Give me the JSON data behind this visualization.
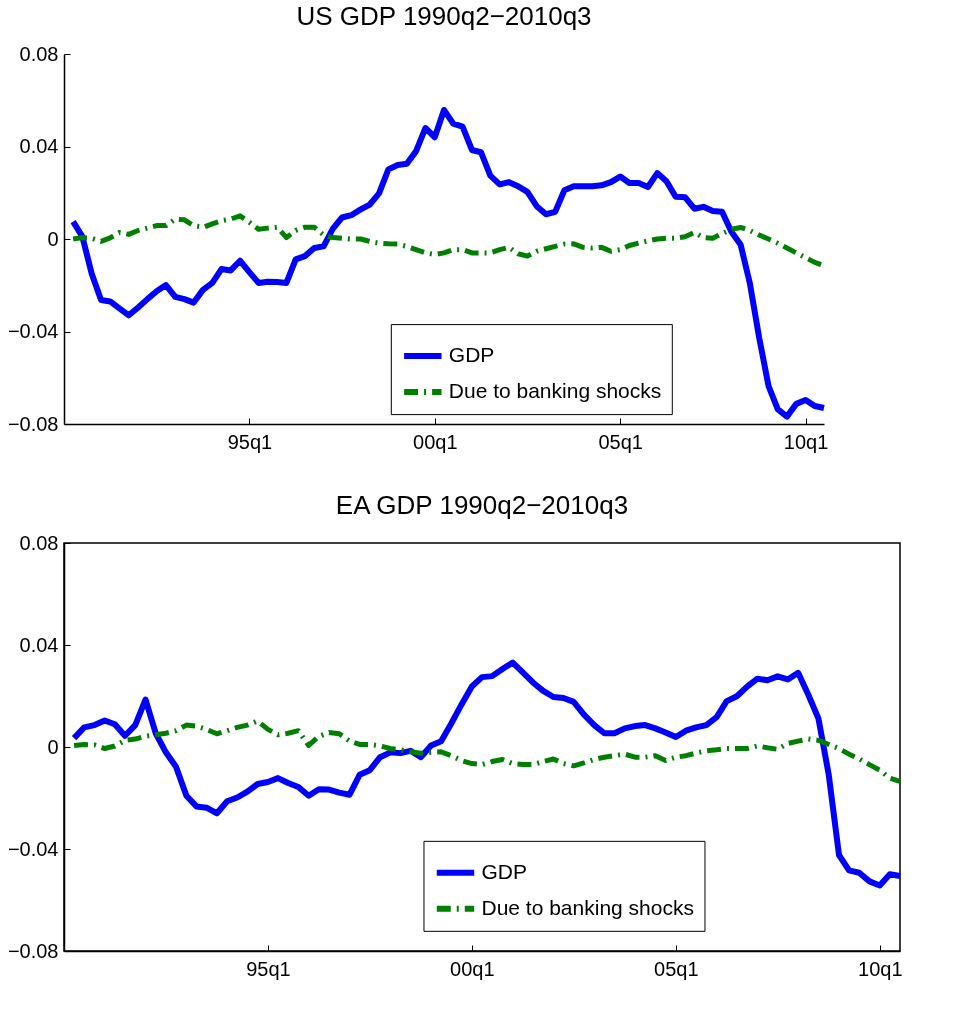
{
  "chart_data": [
    {
      "type": "line",
      "title": "US GDP 1990q2−2010q3",
      "x": [
        "1990-04",
        "1990-07",
        "1990-10",
        "1991-01",
        "1991-04",
        "1991-07",
        "1991-10",
        "1992-01",
        "1992-04",
        "1992-07",
        "1992-10",
        "1993-01",
        "1993-04",
        "1993-07",
        "1993-10",
        "1994-01",
        "1994-04",
        "1994-07",
        "1994-10",
        "1995-01",
        "1995-04",
        "1995-07",
        "1995-10",
        "1996-01",
        "1996-04",
        "1996-07",
        "1996-10",
        "1997-01",
        "1997-04",
        "1997-07",
        "1997-10",
        "1998-01",
        "1998-04",
        "1998-07",
        "1998-10",
        "1999-01",
        "1999-04",
        "1999-07",
        "1999-10",
        "2000-01",
        "2000-04",
        "2000-07",
        "2000-10",
        "2001-01",
        "2001-04",
        "2001-07",
        "2001-10",
        "2002-01",
        "2002-04",
        "2002-07",
        "2002-10",
        "2003-01",
        "2003-04",
        "2003-07",
        "2003-10",
        "2004-01",
        "2004-04",
        "2004-07",
        "2004-10",
        "2005-01",
        "2005-04",
        "2005-07",
        "2005-10",
        "2006-01",
        "2006-04",
        "2006-07",
        "2006-10",
        "2007-01",
        "2007-04",
        "2007-07",
        "2007-10",
        "2008-01",
        "2008-04",
        "2008-07",
        "2008-10",
        "2009-01",
        "2009-04",
        "2009-07",
        "2009-10",
        "2010-01",
        "2010-04",
        "2010-07"
      ],
      "series": [
        {
          "name": "GDP",
          "color": "#0000ff",
          "line_style": "solid",
          "values": [
            0.0075,
            0.001,
            -0.015,
            -0.0264,
            -0.027,
            -0.03,
            -0.033,
            -0.0296,
            -0.026,
            -0.0226,
            -0.0199,
            -0.025,
            -0.026,
            -0.0275,
            -0.022,
            -0.019,
            -0.013,
            -0.0136,
            -0.0094,
            -0.0143,
            -0.019,
            -0.0185,
            -0.0186,
            -0.019,
            -0.0088,
            -0.0074,
            -0.0039,
            -0.0032,
            0.0044,
            0.0093,
            0.0103,
            0.0128,
            0.0149,
            0.0197,
            0.0301,
            0.032,
            0.0325,
            0.038,
            0.048,
            0.044,
            0.0558,
            0.0499,
            0.0486,
            0.0385,
            0.0375,
            0.0274,
            0.0236,
            0.0246,
            0.0228,
            0.0204,
            0.0142,
            0.0107,
            0.0117,
            0.0211,
            0.0228,
            0.0228,
            0.0228,
            0.0232,
            0.0246,
            0.027,
            0.0242,
            0.0242,
            0.0225,
            0.0285,
            0.025,
            0.0183,
            0.0181,
            0.0131,
            0.0139,
            0.0121,
            0.0118,
            0.0031,
            -0.0025,
            -0.0192,
            -0.0428,
            -0.0636,
            -0.0736,
            -0.0768,
            -0.0713,
            -0.0696,
            -0.0722,
            -0.0731
          ]
        },
        {
          "name": "Due to banking shocks",
          "color": "#008000",
          "line_style": "dashed",
          "values": [
            0,
            0.0006,
            0.0003,
            -0.001,
            0.0005,
            0.0028,
            0.002,
            0.0037,
            0.0047,
            0.0058,
            0.0058,
            0.0086,
            0.0083,
            0.0058,
            0.0051,
            0.0065,
            0.0079,
            0.0086,
            0.01,
            0.0072,
            0.0042,
            0.0047,
            0.0051,
            0.0006,
            0.0037,
            0.0051,
            0.0051,
            0.0017,
            0.0006,
            0.0003,
            0,
            0,
            -0.0011,
            -0.0018,
            -0.0021,
            -0.0022,
            -0.0032,
            -0.0046,
            -0.006,
            -0.0067,
            -0.006,
            -0.0046,
            -0.0046,
            -0.006,
            -0.006,
            -0.006,
            -0.0046,
            -0.0036,
            -0.0064,
            -0.0074,
            -0.0053,
            -0.0042,
            -0.0032,
            -0.0022,
            -0.0021,
            -0.0036,
            -0.0039,
            -0.0036,
            -0.0053,
            -0.0046,
            -0.0028,
            -0.0018,
            -0.0008,
            0,
            0.0003,
            0.0003,
            0.001,
            0.0028,
            0.0006,
            0.0003,
            0.0024,
            0.0042,
            0.005,
            0.0037,
            0.0017,
            0,
            -0.0018,
            -0.0039,
            -0.006,
            -0.0081,
            -0.0101,
            -0.0115
          ]
        }
      ],
      "xlim": [
        "1990-01",
        "2010-07"
      ],
      "xticks": [
        {
          "value": "1995-01",
          "label": "95q1"
        },
        {
          "value": "2000-01",
          "label": "00q1"
        },
        {
          "value": "2005-01",
          "label": "05q1"
        },
        {
          "value": "2010-01",
          "label": "10q1"
        }
      ],
      "ylim": [
        -0.08,
        0.08
      ],
      "yticks": [
        -0.08,
        -0.04,
        0,
        0.04,
        0.08
      ],
      "legend": "bottom right",
      "grid": false
    },
    {
      "type": "line",
      "title": "EA GDP 1990q2−2010q3",
      "x": [
        "1990-04",
        "1990-07",
        "1990-10",
        "1991-01",
        "1991-04",
        "1991-07",
        "1991-10",
        "1992-01",
        "1992-04",
        "1992-07",
        "1992-10",
        "1993-01",
        "1993-04",
        "1993-07",
        "1993-10",
        "1994-01",
        "1994-04",
        "1994-07",
        "1994-10",
        "1995-01",
        "1995-04",
        "1995-07",
        "1995-10",
        "1996-01",
        "1996-04",
        "1996-07",
        "1996-10",
        "1997-01",
        "1997-04",
        "1997-07",
        "1997-10",
        "1998-01",
        "1998-04",
        "1998-07",
        "1998-10",
        "1999-01",
        "1999-04",
        "1999-07",
        "1999-10",
        "2000-01",
        "2000-04",
        "2000-07",
        "2000-10",
        "2001-01",
        "2001-04",
        "2001-07",
        "2001-10",
        "2002-01",
        "2002-04",
        "2002-07",
        "2002-10",
        "2003-01",
        "2003-04",
        "2003-07",
        "2003-10",
        "2004-01",
        "2004-04",
        "2004-07",
        "2004-10",
        "2005-01",
        "2005-04",
        "2005-07",
        "2005-10",
        "2006-01",
        "2006-04",
        "2006-07",
        "2006-10",
        "2007-01",
        "2007-04",
        "2007-07",
        "2007-10",
        "2008-01",
        "2008-04",
        "2008-07",
        "2008-10",
        "2009-01",
        "2009-04",
        "2009-07",
        "2009-10",
        "2010-01",
        "2010-04",
        "2010-07"
      ],
      "series": [
        {
          "name": "GDP",
          "color": "#0000ff",
          "line_style": "solid",
          "values": [
            0.0035,
            0.0077,
            0.0086,
            0.0104,
            0.0089,
            0.0044,
            0.0086,
            0.0186,
            0.0054,
            -0.0021,
            -0.0078,
            -0.0191,
            -0.0233,
            -0.0238,
            -0.026,
            -0.0213,
            -0.0198,
            -0.0175,
            -0.0145,
            -0.0137,
            -0.0122,
            -0.0141,
            -0.0157,
            -0.0191,
            -0.0166,
            -0.0167,
            -0.0179,
            -0.0187,
            -0.0109,
            -0.0091,
            -0.004,
            -0.0021,
            -0.0024,
            -0.0015,
            -0.004,
            0.0006,
            0.0023,
            0.0092,
            0.0167,
            0.0237,
            0.0274,
            0.0278,
            0.0306,
            0.0331,
            0.0293,
            0.0253,
            0.022,
            0.0196,
            0.0192,
            0.0177,
            0.0127,
            0.0086,
            0.0054,
            0.0054,
            0.0073,
            0.0082,
            0.0086,
            0.0073,
            0.0057,
            0.0039,
            0.0064,
            0.0077,
            0.0086,
            0.0117,
            0.018,
            0.0199,
            0.0237,
            0.0268,
            0.0262,
            0.0277,
            0.0265,
            0.0291,
            0.0205,
            0.0111,
            -0.0109,
            -0.0424,
            -0.0484,
            -0.0493,
            -0.0527,
            -0.0543,
            -0.0499,
            -0.0506
          ]
        },
        {
          "name": "Due to banking shocks",
          "color": "#008000",
          "line_style": "dashed",
          "values": [
            0.0006,
            0.001,
            0.0008,
            -0.0006,
            0.0004,
            0.0026,
            0.0031,
            0.0042,
            0.0048,
            0.0054,
            0.0064,
            0.0086,
            0.0082,
            0.0069,
            0.0052,
            0.0064,
            0.0077,
            0.0086,
            0.0102,
            0.0069,
            0.0048,
            0.0054,
            0.0064,
            0.0006,
            0.0042,
            0.0057,
            0.0052,
            0.0023,
            0.001,
            0.001,
            0.0004,
            -0.0006,
            -0.0011,
            -0.0019,
            -0.0024,
            -0.0021,
            -0.0019,
            -0.0034,
            -0.0053,
            -0.0065,
            -0.0069,
            -0.0057,
            -0.0049,
            -0.0065,
            -0.0069,
            -0.0069,
            -0.0057,
            -0.0047,
            -0.0065,
            -0.0074,
            -0.0062,
            -0.0049,
            -0.004,
            -0.0034,
            -0.0028,
            -0.004,
            -0.004,
            -0.0034,
            -0.0053,
            -0.004,
            -0.0034,
            -0.0024,
            -0.0015,
            -0.0011,
            -0.0006,
            -0.0006,
            -0.0006,
            0.0004,
            -0.0003,
            -0.0009,
            0.0014,
            0.0023,
            0.0031,
            0.0026,
            0.001,
            -0.0006,
            -0.0028,
            -0.0047,
            -0.0069,
            -0.0091,
            -0.0122,
            -0.0135
          ]
        }
      ],
      "xlim": [
        "1990-01",
        "2010-07"
      ],
      "xticks": [
        {
          "value": "1995-01",
          "label": "95q1"
        },
        {
          "value": "2000-01",
          "label": "00q1"
        },
        {
          "value": "2005-01",
          "label": "05q1"
        },
        {
          "value": "2010-01",
          "label": "10q1"
        }
      ],
      "ylim": [
        -0.08,
        0.08
      ],
      "yticks": [
        -0.08,
        -0.04,
        0,
        0.04,
        0.08
      ],
      "legend": "bottom right",
      "grid": false
    }
  ]
}
